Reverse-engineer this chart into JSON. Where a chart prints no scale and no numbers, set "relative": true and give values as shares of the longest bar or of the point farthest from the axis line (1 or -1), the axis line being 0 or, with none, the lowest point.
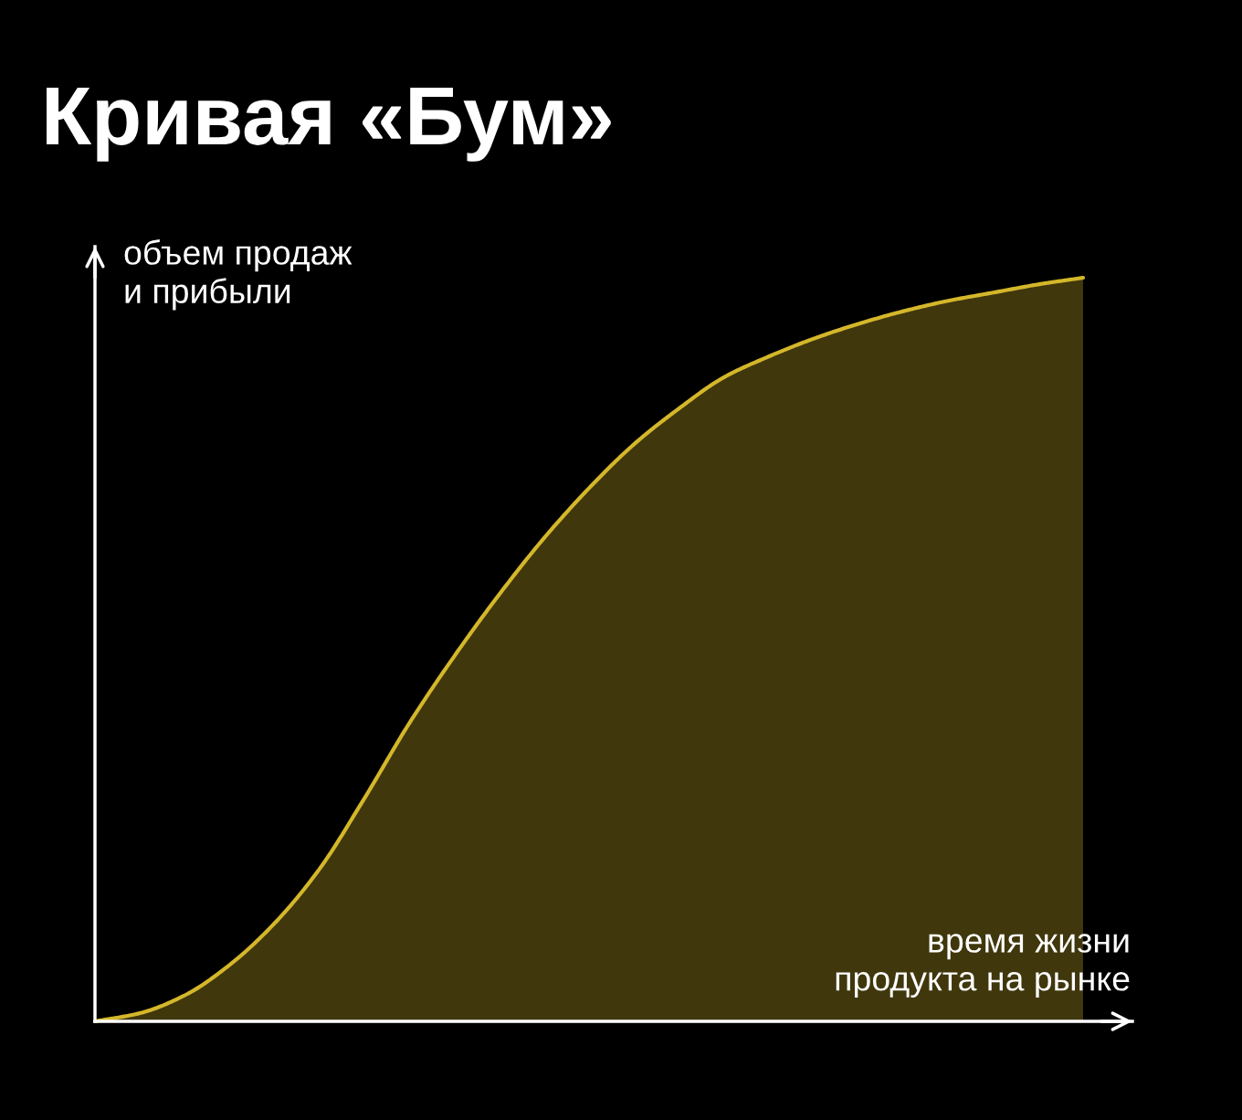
{
  "chart_data": {
    "type": "area",
    "title": "Кривая «Бум»",
    "ylabel": "объем продаж\nи прибыли",
    "xlabel": "время жизни\nпродукта на рынке",
    "relative": true,
    "categories": [
      null,
      null,
      null,
      null,
      null,
      null,
      null,
      null,
      null,
      null,
      null,
      null,
      null,
      null,
      null,
      null,
      null,
      null,
      null,
      null,
      null,
      null,
      null
    ],
    "series": [
      {
        "color": "#d4b72a",
        "values": [
          0,
          0.011,
          0.035,
          0.076,
          0.132,
          0.205,
          0.3,
          0.401,
          0.491,
          0.574,
          0.65,
          0.717,
          0.776,
          0.824,
          0.866,
          0.894,
          0.918,
          0.938,
          0.955,
          0.969,
          0.98,
          0.991,
          1
        ]
      }
    ]
  }
}
